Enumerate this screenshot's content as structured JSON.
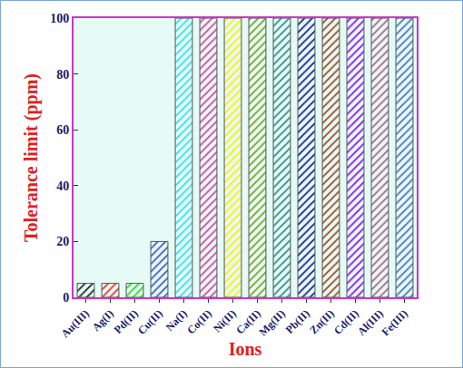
{
  "chart_data": {
    "type": "bar",
    "x_label": "Ions",
    "y_label": "Tolerance limit (ppm)",
    "categories": [
      "Au(III)",
      "Ag(I)",
      "Pd(II)",
      "Cu(II)",
      "Na(I)",
      "Co(II)",
      "Ni(II)",
      "Ca(II)",
      "Mg(II)",
      "Pb(II)",
      "Zn(II)",
      "Cd(II)",
      "Al(III)",
      "Fe(III)"
    ],
    "values": [
      5,
      5,
      5,
      20,
      100,
      100,
      100,
      100,
      100,
      100,
      100,
      100,
      100,
      100
    ],
    "colors": [
      "#222222",
      "#ff2a2a",
      "#22dd22",
      "#4455cc",
      "#33e0f0",
      "#e040a0",
      "#ffee00",
      "#7aa01e",
      "#2e8b8b",
      "#1a1a9a",
      "#a0461e",
      "#8a10ff",
      "#b06088",
      "#4a70c8"
    ],
    "ylim": [
      0,
      100
    ],
    "yticks": [
      0,
      20,
      40,
      60,
      80,
      100
    ],
    "grid": false
  }
}
